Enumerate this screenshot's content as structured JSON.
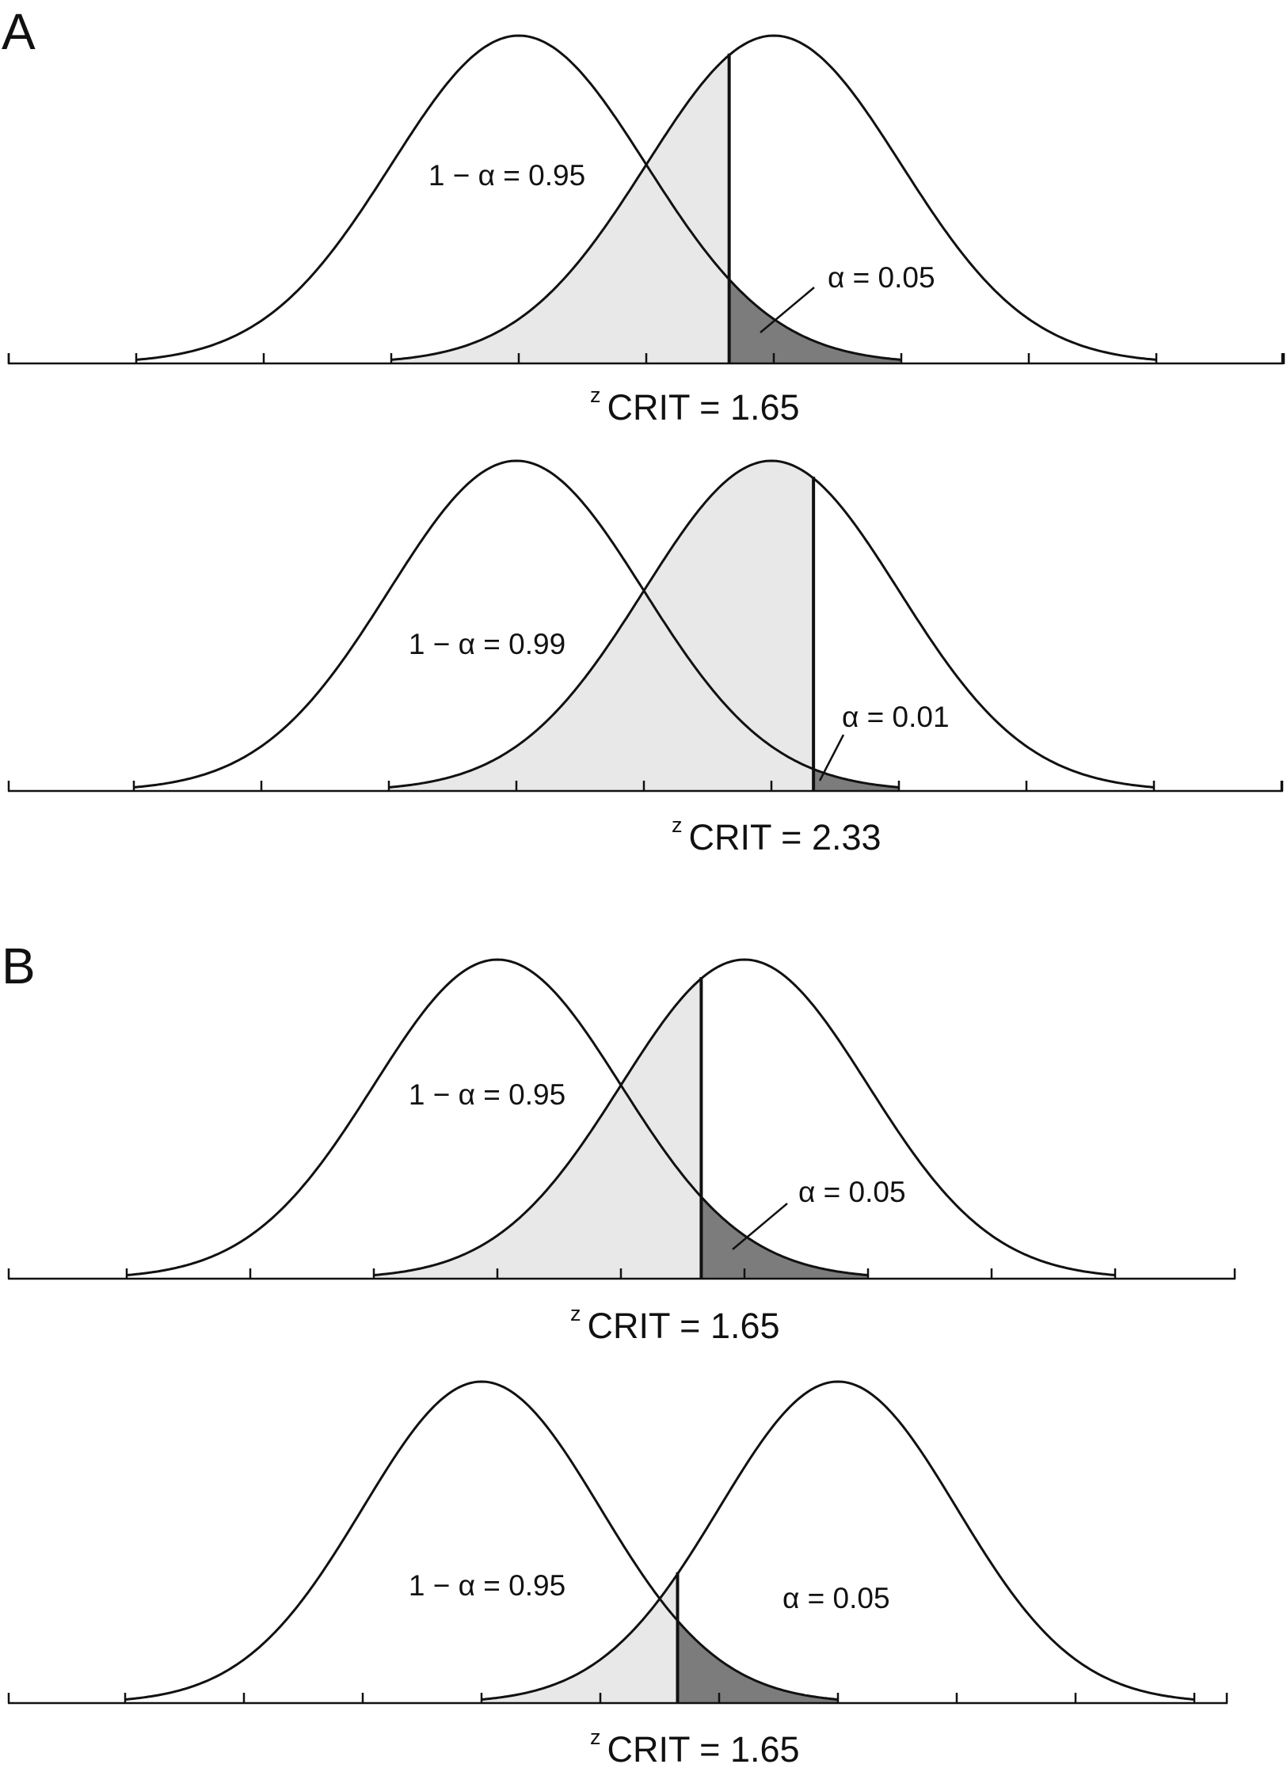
{
  "figure": {
    "panel_labels": [
      "A",
      "B"
    ],
    "colors": {
      "line": "#111111",
      "light_fill": "#e8e8e8",
      "dark_fill": "#7c7c7c",
      "background": "#ffffff"
    },
    "rows": [
      {
        "panel": "A",
        "mu_null": 0,
        "mu_alt": 2,
        "z_crit": 1.65,
        "light_from_z": -1,
        "one_minus_alpha_label": "1 − α = 0.95",
        "alpha_label": "α = 0.05",
        "alpha_leader": true,
        "zcrit_prefix": "z",
        "zcrit_text": "CRIT = 1.65"
      },
      {
        "panel": "A",
        "mu_null": 0,
        "mu_alt": 2,
        "z_crit": 2.33,
        "light_from_z": -1,
        "one_minus_alpha_label": "1 − α = 0.99",
        "alpha_label": "α = 0.01",
        "alpha_leader": true,
        "zcrit_prefix": "z",
        "zcrit_text": "CRIT = 2.33"
      },
      {
        "panel": "B",
        "mu_null": 0,
        "mu_alt": 2,
        "z_crit": 1.65,
        "light_from_z": -1,
        "one_minus_alpha_label": "1 − α = 0.95",
        "alpha_label": "α = 0.05",
        "alpha_leader": true,
        "zcrit_prefix": "z",
        "zcrit_text": "CRIT = 1.65"
      },
      {
        "panel": "B",
        "mu_null": 0,
        "mu_alt": 3,
        "z_crit": 1.65,
        "light_from_z": 0,
        "one_minus_alpha_label": "1 − α = 0.95",
        "alpha_label": "α = 0.05",
        "alpha_leader": false,
        "zcrit_prefix": "z",
        "zcrit_text": "CRIT = 1.65"
      }
    ]
  }
}
